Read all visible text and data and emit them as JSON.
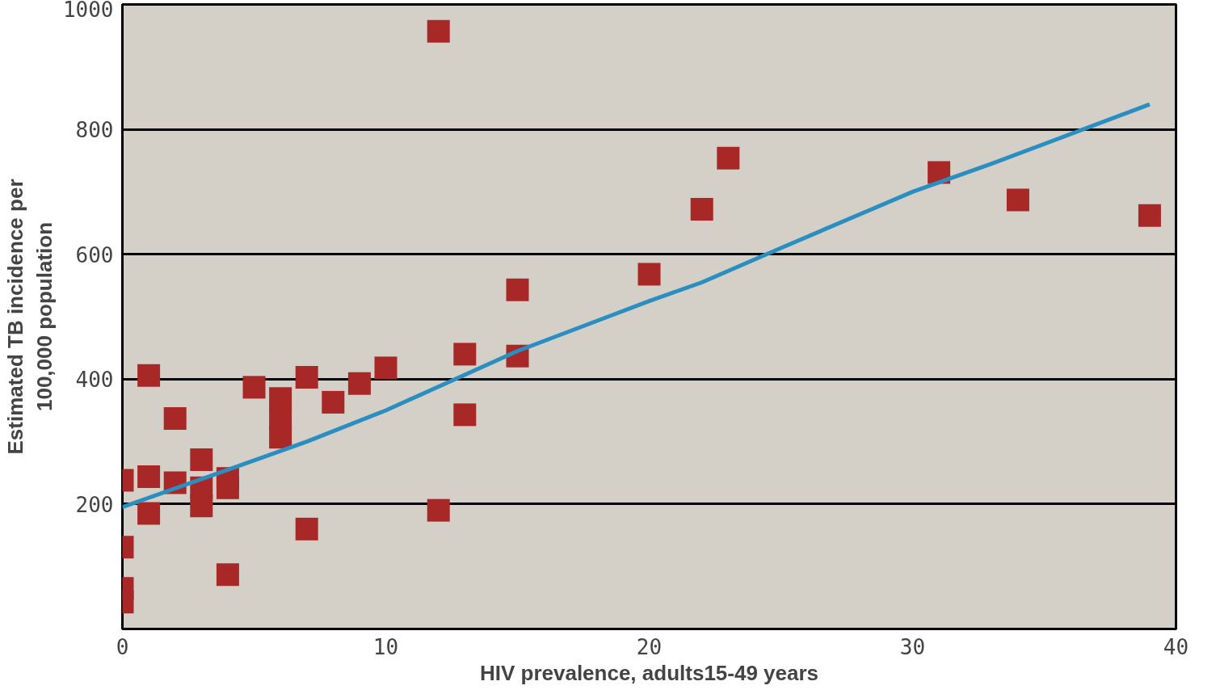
{
  "chart_data": {
    "type": "scatter",
    "xlabel": "HIV prevalence, adults15-49 years",
    "ylabel": "Estimated TB incidence per\n100,000 population",
    "xlim": [
      0,
      40
    ],
    "ylim": [
      0,
      1000
    ],
    "xticks": [
      0,
      10,
      20,
      30,
      40
    ],
    "yticks": [
      200,
      400,
      600,
      800,
      1000
    ],
    "grid": "y",
    "series": [
      {
        "color": "#a82828",
        "marker": "square",
        "x": [
          0,
          0,
          0,
          0,
          1,
          1,
          1,
          2,
          2,
          3,
          3,
          3,
          4,
          4,
          4,
          5,
          6,
          6,
          6,
          7,
          7,
          8,
          9,
          10,
          12,
          12,
          13,
          13,
          15,
          15,
          20,
          22,
          23,
          31,
          34,
          39
        ],
        "values": [
          238,
          131,
          65,
          43,
          406,
          244,
          185,
          337,
          234,
          271,
          226,
          197,
          241,
          226,
          87,
          387,
          369,
          337,
          307,
          403,
          160,
          363,
          393,
          418,
          957,
          190,
          440,
          343,
          543,
          437,
          568,
          672,
          754,
          731,
          687,
          662
        ]
      },
      {
        "type": "line",
        "color": "#2a8fc0",
        "x": [
          0,
          5,
          7,
          10,
          15,
          20,
          22,
          25,
          30,
          33,
          39
        ],
        "values": [
          195,
          270,
          300,
          350,
          445,
          525,
          555,
          610,
          700,
          745,
          840
        ]
      }
    ]
  }
}
